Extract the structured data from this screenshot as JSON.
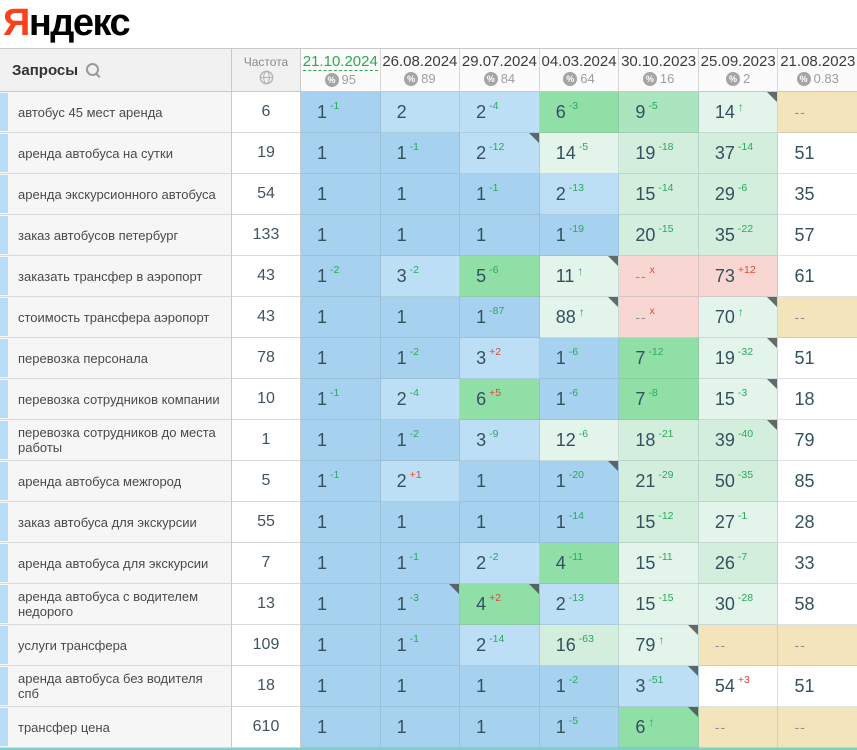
{
  "logo": {
    "first_letter": "Я",
    "rest": "ндекс"
  },
  "header": {
    "queries_label": "Запросы",
    "frequency_label": "Частота",
    "dates": [
      {
        "label": "21.10.2024",
        "metric": "95",
        "selected": true
      },
      {
        "label": "26.08.2024",
        "metric": "89",
        "selected": false
      },
      {
        "label": "29.07.2024",
        "metric": "84",
        "selected": false
      },
      {
        "label": "04.03.2024",
        "metric": "64",
        "selected": false
      },
      {
        "label": "30.10.2023",
        "metric": "16",
        "selected": false
      },
      {
        "label": "25.09.2023",
        "metric": "2",
        "selected": false
      },
      {
        "label": "21.08.2023",
        "metric": "0.83",
        "selected": false
      }
    ]
  },
  "icons": {
    "percent": "%",
    "up_arrow": "↑",
    "dropped": "x"
  },
  "colors": {
    "logo_red": "#fc3f1d",
    "selected_date_green": "#2fa84f",
    "delta_green": "#2aa85c",
    "delta_red": "#e0483c",
    "accent_strip": "#b9ddf6",
    "scrollbar_teal": "#7dd1cc",
    "bands": {
      "b1": "#a6d2ef",
      "b2": "#bcdff6",
      "g1": "#90dfa6",
      "g2": "#abe5bf",
      "g3": "#d3eedd",
      "g4": "#e3f4ea",
      "w": "#ffffff",
      "pink": "#f8d7d3",
      "tan": "#f4e4bc"
    }
  },
  "rows": [
    {
      "keyword": "автобус 45 мест аренда",
      "frequency": "6",
      "cells": [
        {
          "pos": "1",
          "delta": "-1",
          "deltaColor": "g",
          "band": "b1"
        },
        {
          "pos": "2",
          "band": "b2"
        },
        {
          "pos": "2",
          "delta": "-4",
          "deltaColor": "g",
          "band": "b2"
        },
        {
          "pos": "6",
          "delta": "-3",
          "deltaColor": "g",
          "band": "g1"
        },
        {
          "pos": "9",
          "delta": "-5",
          "deltaColor": "g",
          "band": "g2"
        },
        {
          "pos": "14",
          "arrow": true,
          "band": "g4",
          "corner": true
        },
        {
          "pos": "--",
          "band": "tan"
        }
      ]
    },
    {
      "keyword": "аренда автобуса на сутки",
      "frequency": "19",
      "cells": [
        {
          "pos": "1",
          "band": "b1"
        },
        {
          "pos": "1",
          "delta": "-1",
          "deltaColor": "g",
          "band": "b1"
        },
        {
          "pos": "2",
          "delta": "-12",
          "deltaColor": "g",
          "band": "b2",
          "corner": true
        },
        {
          "pos": "14",
          "delta": "-5",
          "deltaColor": "g",
          "band": "g4"
        },
        {
          "pos": "19",
          "delta": "-18",
          "deltaColor": "g",
          "band": "g3"
        },
        {
          "pos": "37",
          "delta": "-14",
          "deltaColor": "g",
          "band": "g3"
        },
        {
          "pos": "51",
          "band": "w"
        }
      ]
    },
    {
      "keyword": "аренда экскурсионного автобуса",
      "frequency": "54",
      "cells": [
        {
          "pos": "1",
          "band": "b1"
        },
        {
          "pos": "1",
          "band": "b1"
        },
        {
          "pos": "1",
          "delta": "-1",
          "deltaColor": "g",
          "band": "b1"
        },
        {
          "pos": "2",
          "delta": "-13",
          "deltaColor": "g",
          "band": "b2"
        },
        {
          "pos": "15",
          "delta": "-14",
          "deltaColor": "g",
          "band": "g3"
        },
        {
          "pos": "29",
          "delta": "-6",
          "deltaColor": "g",
          "band": "g3"
        },
        {
          "pos": "35",
          "band": "w"
        }
      ]
    },
    {
      "keyword": "заказ автобусов петербург",
      "frequency": "133",
      "cells": [
        {
          "pos": "1",
          "band": "b1"
        },
        {
          "pos": "1",
          "band": "b1"
        },
        {
          "pos": "1",
          "band": "b1"
        },
        {
          "pos": "1",
          "delta": "-19",
          "deltaColor": "g",
          "band": "b1"
        },
        {
          "pos": "20",
          "delta": "-15",
          "deltaColor": "g",
          "band": "g3"
        },
        {
          "pos": "35",
          "delta": "-22",
          "deltaColor": "g",
          "band": "g3"
        },
        {
          "pos": "57",
          "band": "w"
        }
      ]
    },
    {
      "keyword": "заказать трансфер в аэропорт",
      "frequency": "43",
      "cells": [
        {
          "pos": "1",
          "delta": "-2",
          "deltaColor": "g",
          "band": "b1"
        },
        {
          "pos": "3",
          "delta": "-2",
          "deltaColor": "g",
          "band": "b2"
        },
        {
          "pos": "5",
          "delta": "-6",
          "deltaColor": "g",
          "band": "g1"
        },
        {
          "pos": "11",
          "arrow": true,
          "band": "g4",
          "corner": true
        },
        {
          "pos": "--",
          "x": true,
          "band": "pink"
        },
        {
          "pos": "73",
          "delta": "+12",
          "deltaColor": "r",
          "band": "pink"
        },
        {
          "pos": "61",
          "band": "w"
        }
      ]
    },
    {
      "keyword": "стоимость трансфера аэропорт",
      "frequency": "43",
      "cells": [
        {
          "pos": "1",
          "band": "b1"
        },
        {
          "pos": "1",
          "band": "b1"
        },
        {
          "pos": "1",
          "delta": "-87",
          "deltaColor": "g",
          "band": "b1"
        },
        {
          "pos": "88",
          "arrow": true,
          "band": "g4",
          "corner": true
        },
        {
          "pos": "--",
          "x": true,
          "band": "pink"
        },
        {
          "pos": "70",
          "arrow": true,
          "band": "g4",
          "corner": true
        },
        {
          "pos": "--",
          "band": "tan"
        }
      ]
    },
    {
      "keyword": "перевозка персонала",
      "frequency": "78",
      "cells": [
        {
          "pos": "1",
          "band": "b1"
        },
        {
          "pos": "1",
          "delta": "-2",
          "deltaColor": "g",
          "band": "b1"
        },
        {
          "pos": "3",
          "delta": "+2",
          "deltaColor": "r",
          "band": "b2"
        },
        {
          "pos": "1",
          "delta": "-6",
          "deltaColor": "g",
          "band": "b1"
        },
        {
          "pos": "7",
          "delta": "-12",
          "deltaColor": "g",
          "band": "g1"
        },
        {
          "pos": "19",
          "delta": "-32",
          "deltaColor": "g",
          "band": "g4",
          "corner": true
        },
        {
          "pos": "51",
          "band": "w"
        }
      ]
    },
    {
      "keyword": "перевозка сотрудников компании",
      "frequency": "10",
      "cells": [
        {
          "pos": "1",
          "delta": "-1",
          "deltaColor": "g",
          "band": "b1"
        },
        {
          "pos": "2",
          "delta": "-4",
          "deltaColor": "g",
          "band": "b2"
        },
        {
          "pos": "6",
          "delta": "+5",
          "deltaColor": "r",
          "band": "g1"
        },
        {
          "pos": "1",
          "delta": "-6",
          "deltaColor": "g",
          "band": "b1"
        },
        {
          "pos": "7",
          "delta": "-8",
          "deltaColor": "g",
          "band": "g1"
        },
        {
          "pos": "15",
          "delta": "-3",
          "deltaColor": "g",
          "band": "g4",
          "corner": true
        },
        {
          "pos": "18",
          "band": "w"
        }
      ]
    },
    {
      "keyword": "перевозка сотрудников до места работы",
      "frequency": "1",
      "cells": [
        {
          "pos": "1",
          "band": "b1"
        },
        {
          "pos": "1",
          "delta": "-2",
          "deltaColor": "g",
          "band": "b1"
        },
        {
          "pos": "3",
          "delta": "-9",
          "deltaColor": "g",
          "band": "b2"
        },
        {
          "pos": "12",
          "delta": "-6",
          "deltaColor": "g",
          "band": "g4"
        },
        {
          "pos": "18",
          "delta": "-21",
          "deltaColor": "g",
          "band": "g3"
        },
        {
          "pos": "39",
          "delta": "-40",
          "deltaColor": "g",
          "band": "g3",
          "corner": true
        },
        {
          "pos": "79",
          "band": "w"
        }
      ]
    },
    {
      "keyword": "аренда автобуса межгород",
      "frequency": "5",
      "cells": [
        {
          "pos": "1",
          "delta": "-1",
          "deltaColor": "g",
          "band": "b1"
        },
        {
          "pos": "2",
          "delta": "+1",
          "deltaColor": "r",
          "band": "b2"
        },
        {
          "pos": "1",
          "band": "b1"
        },
        {
          "pos": "1",
          "delta": "-20",
          "deltaColor": "g",
          "band": "b1",
          "corner": true
        },
        {
          "pos": "21",
          "delta": "-29",
          "deltaColor": "g",
          "band": "g3"
        },
        {
          "pos": "50",
          "delta": "-35",
          "deltaColor": "g",
          "band": "g3"
        },
        {
          "pos": "85",
          "band": "w"
        }
      ]
    },
    {
      "keyword": "заказ автобуса для экскурсии",
      "frequency": "55",
      "cells": [
        {
          "pos": "1",
          "band": "b1"
        },
        {
          "pos": "1",
          "band": "b1"
        },
        {
          "pos": "1",
          "band": "b1"
        },
        {
          "pos": "1",
          "delta": "-14",
          "deltaColor": "g",
          "band": "b1"
        },
        {
          "pos": "15",
          "delta": "-12",
          "deltaColor": "g",
          "band": "g3"
        },
        {
          "pos": "27",
          "delta": "-1",
          "deltaColor": "g",
          "band": "g4"
        },
        {
          "pos": "28",
          "band": "w"
        }
      ]
    },
    {
      "keyword": "аренда автобуса для экскурсии",
      "frequency": "7",
      "cells": [
        {
          "pos": "1",
          "band": "b1"
        },
        {
          "pos": "1",
          "delta": "-1",
          "deltaColor": "g",
          "band": "b1"
        },
        {
          "pos": "2",
          "delta": "-2",
          "deltaColor": "g",
          "band": "b2"
        },
        {
          "pos": "4",
          "delta": "-11",
          "deltaColor": "g",
          "band": "g1"
        },
        {
          "pos": "15",
          "delta": "-11",
          "deltaColor": "g",
          "band": "g4"
        },
        {
          "pos": "26",
          "delta": "-7",
          "deltaColor": "g",
          "band": "g3"
        },
        {
          "pos": "33",
          "band": "w"
        }
      ]
    },
    {
      "keyword": "аренда автобуса с водителем недорого",
      "frequency": "13",
      "cells": [
        {
          "pos": "1",
          "band": "b1"
        },
        {
          "pos": "1",
          "delta": "-3",
          "deltaColor": "g",
          "band": "b1",
          "corner": true
        },
        {
          "pos": "4",
          "delta": "+2",
          "deltaColor": "r",
          "band": "g1",
          "corner": true
        },
        {
          "pos": "2",
          "delta": "-13",
          "deltaColor": "g",
          "band": "b2"
        },
        {
          "pos": "15",
          "delta": "-15",
          "deltaColor": "g",
          "band": "g4"
        },
        {
          "pos": "30",
          "delta": "-28",
          "deltaColor": "g",
          "band": "g4"
        },
        {
          "pos": "58",
          "band": "w"
        }
      ]
    },
    {
      "keyword": "услуги трансфера",
      "frequency": "109",
      "cells": [
        {
          "pos": "1",
          "band": "b1"
        },
        {
          "pos": "1",
          "delta": "-1",
          "deltaColor": "g",
          "band": "b1"
        },
        {
          "pos": "2",
          "delta": "-14",
          "deltaColor": "g",
          "band": "b2"
        },
        {
          "pos": "16",
          "delta": "-63",
          "deltaColor": "g",
          "band": "g3"
        },
        {
          "pos": "79",
          "arrow": true,
          "band": "g4",
          "corner": true
        },
        {
          "pos": "--",
          "band": "tan"
        },
        {
          "pos": "--",
          "band": "tan"
        }
      ]
    },
    {
      "keyword": "аренда автобуса без водителя спб",
      "frequency": "18",
      "cells": [
        {
          "pos": "1",
          "band": "b1"
        },
        {
          "pos": "1",
          "band": "b1"
        },
        {
          "pos": "1",
          "band": "b1"
        },
        {
          "pos": "1",
          "delta": "-2",
          "deltaColor": "g",
          "band": "b1"
        },
        {
          "pos": "3",
          "delta": "-51",
          "deltaColor": "g",
          "band": "b2",
          "corner": true
        },
        {
          "pos": "54",
          "delta": "+3",
          "deltaColor": "r",
          "band": "w"
        },
        {
          "pos": "51",
          "band": "w"
        }
      ]
    },
    {
      "keyword": "трансфер цена",
      "frequency": "610",
      "cells": [
        {
          "pos": "1",
          "band": "b1"
        },
        {
          "pos": "1",
          "band": "b1"
        },
        {
          "pos": "1",
          "band": "b1"
        },
        {
          "pos": "1",
          "delta": "-5",
          "deltaColor": "g",
          "band": "b1"
        },
        {
          "pos": "6",
          "arrow": true,
          "band": "g1",
          "corner": true
        },
        {
          "pos": "--",
          "band": "tan"
        },
        {
          "pos": "--",
          "band": "tan"
        }
      ]
    }
  ]
}
